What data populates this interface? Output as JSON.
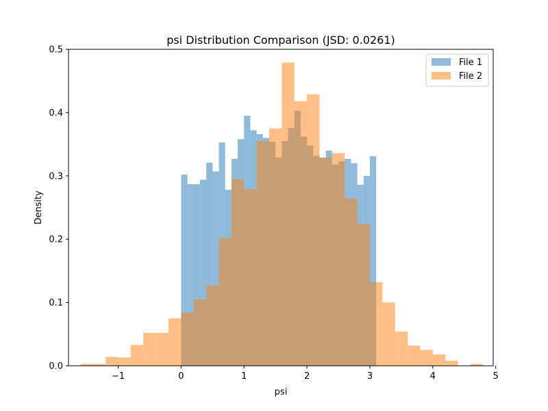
{
  "chart_data": {
    "type": "histogram",
    "title": "psi Distribution Comparison (JSD: 0.0261)",
    "xlabel": "psi",
    "ylabel": "Density",
    "xlim": [
      -1.79,
      4.96
    ],
    "ylim": [
      0,
      0.5
    ],
    "xticks": [
      -1,
      0,
      1,
      2,
      3,
      4,
      5
    ],
    "yticks": [
      0.0,
      0.1,
      0.2,
      0.3,
      0.4,
      0.5
    ],
    "legend_position": "top-right",
    "series": [
      {
        "name": "File 1",
        "color": "#1f77b4",
        "alpha": 0.5,
        "bin_start": 0.0,
        "bin_width": 0.1,
        "values": [
          0.302,
          0.287,
          0.287,
          0.294,
          0.321,
          0.307,
          0.353,
          0.278,
          0.327,
          0.358,
          0.395,
          0.372,
          0.366,
          0.36,
          0.354,
          0.329,
          0.355,
          0.376,
          0.403,
          0.362,
          0.348,
          0.332,
          0.329,
          0.34,
          0.318,
          0.323,
          0.327,
          0.32,
          0.286,
          0.3,
          0.331
        ]
      },
      {
        "name": "File 2",
        "color": "#ff7f0e",
        "alpha": 0.5,
        "bin_start": -1.6,
        "bin_width": 0.2,
        "values": [
          0.003,
          0.003,
          0.014,
          0.013,
          0.033,
          0.052,
          0.052,
          0.075,
          0.084,
          0.105,
          0.127,
          0.202,
          0.295,
          0.279,
          0.355,
          0.375,
          0.479,
          0.418,
          0.429,
          0.329,
          0.336,
          0.264,
          0.224,
          0.132,
          0.1,
          0.054,
          0.032,
          0.025,
          0.018,
          0.008,
          0.0,
          0.003
        ]
      }
    ]
  }
}
